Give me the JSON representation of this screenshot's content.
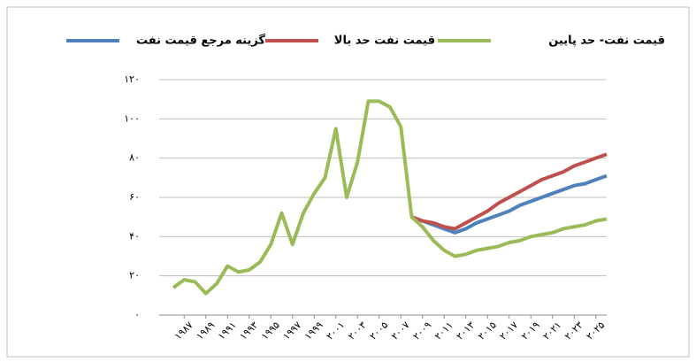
{
  "chart_data": {
    "type": "line",
    "x": [
      1986,
      1987,
      1988,
      1989,
      1990,
      1991,
      1992,
      1993,
      1994,
      1995,
      1996,
      1997,
      1998,
      1999,
      2000,
      2001,
      2002,
      2003,
      2004,
      2005,
      2006,
      2007,
      2008,
      2009,
      2010,
      2011,
      2012,
      2013,
      2014,
      2015,
      2016,
      2017,
      2018,
      2019,
      2020,
      2021,
      2022,
      2023,
      2024,
      2025,
      2026
    ],
    "series": [
      {
        "name": "گزینه مرجع قیمت نفت",
        "color": "#4f81bd",
        "values": [
          null,
          null,
          null,
          null,
          null,
          null,
          null,
          null,
          null,
          null,
          null,
          null,
          null,
          null,
          null,
          null,
          null,
          null,
          null,
          null,
          null,
          null,
          50,
          48,
          46,
          44,
          42,
          44,
          47,
          49,
          51,
          53,
          56,
          58,
          60,
          62,
          64,
          66,
          67,
          69,
          71
        ]
      },
      {
        "name": "قیمت نفت حد بالا",
        "color": "#c0504d",
        "values": [
          null,
          null,
          null,
          null,
          null,
          null,
          null,
          null,
          null,
          null,
          null,
          null,
          null,
          null,
          null,
          null,
          null,
          null,
          null,
          null,
          null,
          null,
          50,
          48,
          47,
          45,
          44,
          47,
          50,
          53,
          57,
          60,
          63,
          66,
          69,
          71,
          73,
          76,
          78,
          80,
          82
        ]
      },
      {
        "name": "قیمت نفت- حد پایین",
        "color": "#9bbb59",
        "values": [
          14,
          18,
          17,
          11,
          16,
          25,
          22,
          23,
          27,
          36,
          52,
          36,
          52,
          62,
          70,
          95,
          60,
          78,
          109,
          109,
          106,
          96,
          50,
          45,
          38,
          33,
          30,
          31,
          33,
          34,
          35,
          37,
          38,
          40,
          41,
          42,
          44,
          45,
          46,
          48,
          49
        ]
      }
    ],
    "xlim": [
      1986,
      2026
    ],
    "xticks": [
      {
        "value": 1987,
        "label": "۱۹۸۷"
      },
      {
        "value": 1989,
        "label": "۱۹۸۹"
      },
      {
        "value": 1991,
        "label": "۱۹۹۱"
      },
      {
        "value": 1993,
        "label": "۱۹۹۳"
      },
      {
        "value": 1995,
        "label": "۱۹۹۵"
      },
      {
        "value": 1997,
        "label": "۱۹۹۷"
      },
      {
        "value": 1999,
        "label": "۱۹۹۹"
      },
      {
        "value": 2001,
        "label": "۲۰۰۱"
      },
      {
        "value": 2003,
        "label": "۲۰۰۳"
      },
      {
        "value": 2005,
        "label": "۲۰۰۵"
      },
      {
        "value": 2007,
        "label": "۲۰۰۷"
      },
      {
        "value": 2009,
        "label": "۲۰۰۹"
      },
      {
        "value": 2011,
        "label": "۲۰۱۱"
      },
      {
        "value": 2013,
        "label": "۲۰۱۳"
      },
      {
        "value": 2015,
        "label": "۲۰۱۵"
      },
      {
        "value": 2017,
        "label": "۲۰۱۷"
      },
      {
        "value": 2019,
        "label": "۲۰۱۹"
      },
      {
        "value": 2021,
        "label": "۲۰۲۱"
      },
      {
        "value": 2023,
        "label": "۲۰۲۳"
      },
      {
        "value": 2025,
        "label": "۲۰۲۵"
      }
    ],
    "ylim": [
      0,
      120
    ],
    "yticks": [
      {
        "value": 0,
        "label": "۰"
      },
      {
        "value": 20,
        "label": "۲۰"
      },
      {
        "value": 40,
        "label": "۴۰"
      },
      {
        "value": 60,
        "label": "۶۰"
      },
      {
        "value": 80,
        "label": "۸۰"
      },
      {
        "value": 100,
        "label": "۱۰۰"
      },
      {
        "value": 120,
        "label": "۱۲۰"
      }
    ],
    "grid": true
  }
}
